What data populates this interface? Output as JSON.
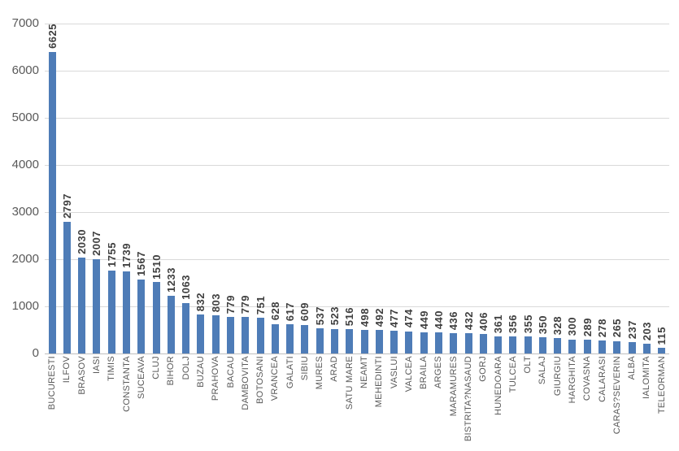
{
  "chart_data": {
    "type": "bar",
    "title": "",
    "xlabel": "",
    "ylabel": "",
    "legend": "none",
    "grid": "horizontal",
    "data_labels": "vertical-bold-above-bars",
    "ylim": [
      0,
      7000
    ],
    "y_ticks": [
      0,
      1000,
      2000,
      3000,
      4000,
      5000,
      6000,
      7000
    ],
    "categories": [
      "BUCURESTI",
      "ILFOV",
      "BRASOV",
      "IASI",
      "TIMIS",
      "CONSTANTA",
      "SUCEAVA",
      "CLUJ",
      "BIHOR",
      "DOLJ",
      "BUZAU",
      "PRAHOVA",
      "BACAU",
      "DAMBOVITA",
      "BOTOSANI",
      "VRANCEA",
      "GALATI",
      "SIBIU",
      "MURES",
      "ARAD",
      "SATU MARE",
      "NEAMT",
      "MEHEDINTI",
      "VASLUI",
      "VALCEA",
      "BRAILA",
      "ARGES",
      "MARAMURES",
      "BISTRITA?NASAUD",
      "GORJ",
      "HUNEDOARA",
      "TULCEA",
      "OLT",
      "SALAJ",
      "GIURGIU",
      "HARGHITA",
      "COVASNA",
      "CALARASI",
      "CARAS?SEVERIN",
      "ALBA",
      "IALOMITA",
      "TELEORMAN"
    ],
    "values": [
      6625,
      2797,
      2030,
      2007,
      1755,
      1739,
      1567,
      1510,
      1233,
      1063,
      832,
      803,
      779,
      779,
      751,
      628,
      617,
      609,
      537,
      523,
      516,
      498,
      492,
      477,
      474,
      449,
      440,
      436,
      432,
      406,
      361,
      356,
      355,
      350,
      328,
      300,
      289,
      278,
      265,
      237,
      203,
      115
    ],
    "colors": {
      "bar": "#4e7cb7",
      "gridline": "#d9d9d9",
      "axis_line": "#bfbfbf",
      "value_label": "#3f3f3f",
      "tick_label": "#595959",
      "background": "#ffffff"
    }
  }
}
